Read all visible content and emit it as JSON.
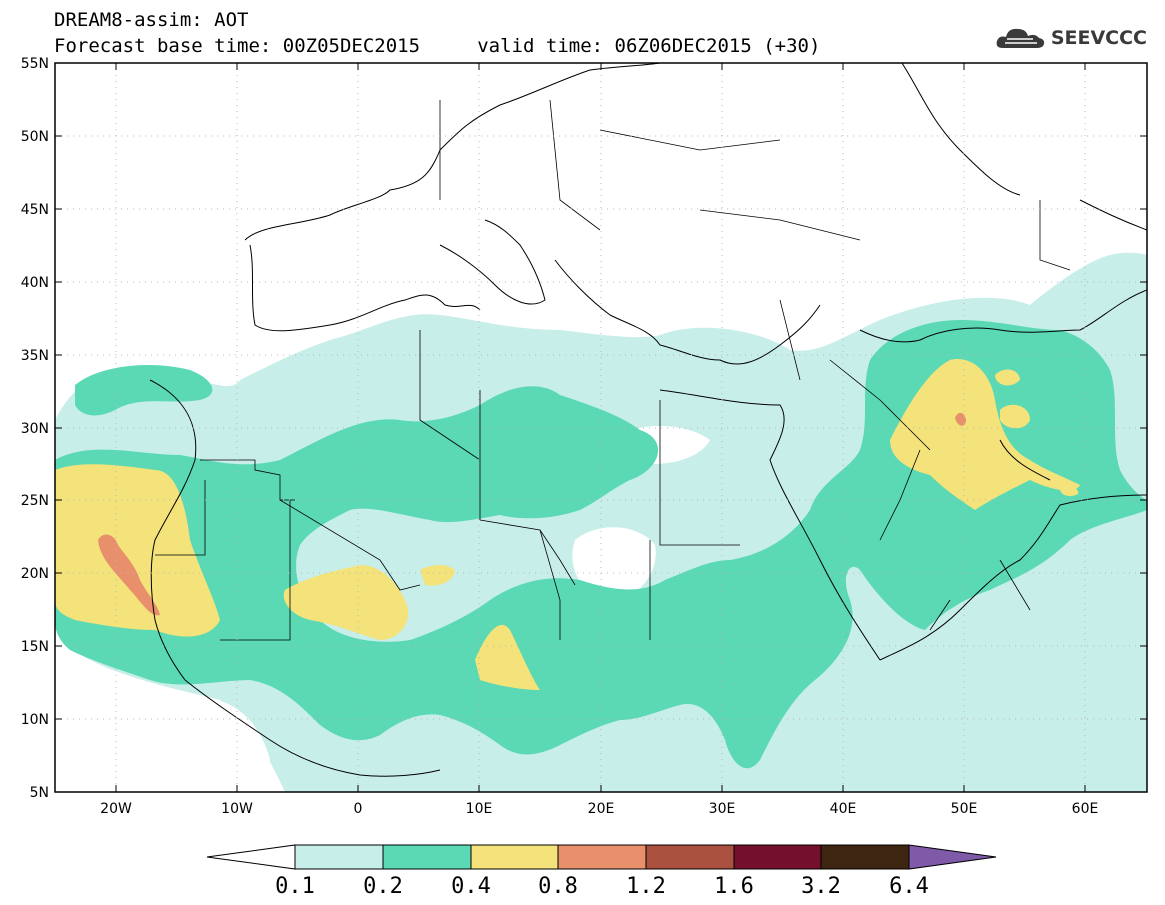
{
  "header": {
    "line1": "DREAM8-assim: AOT",
    "line2": "Forecast base time: 00Z05DEC2015     valid time: 06Z06DEC2015 (+30)",
    "logo_text": "SEEVCCC",
    "logo_icon": "cloud-icon"
  },
  "map": {
    "lon_range": [
      -25,
      65
    ],
    "lat_range": [
      5,
      55
    ],
    "lat_ticks": [
      "55N",
      "50N",
      "45N",
      "40N",
      "35N",
      "30N",
      "25N",
      "20N",
      "15N",
      "10N",
      "5N"
    ],
    "lon_ticks": [
      "20W",
      "10W",
      "0",
      "10E",
      "20E",
      "30E",
      "40E",
      "50E",
      "60E"
    ]
  },
  "colorbar": {
    "labels": [
      "0.1",
      "0.2",
      "0.4",
      "0.8",
      "1.2",
      "1.6",
      "3.2",
      "6.4"
    ],
    "colors": [
      "#c8eeea",
      "#5ad9b4",
      "#f4e37a",
      "#e8906b",
      "#a9503e",
      "#740f2c",
      "#3d2512",
      "#7e5aa8"
    ]
  }
}
